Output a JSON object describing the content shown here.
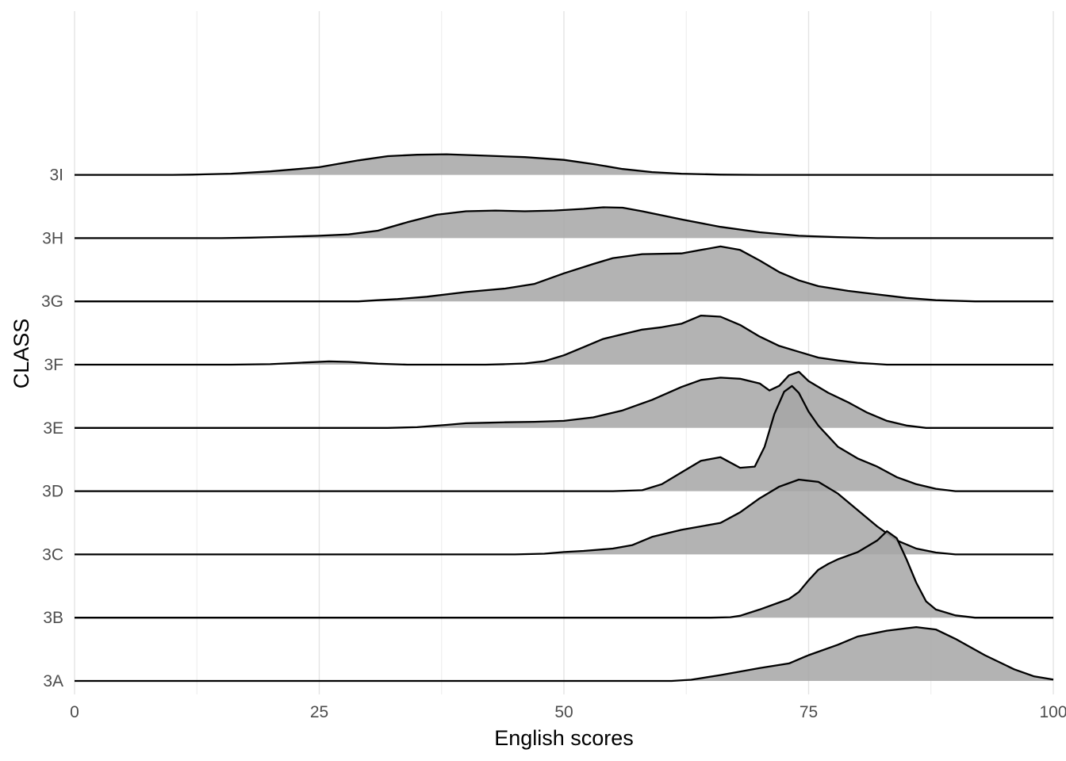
{
  "chart_data": {
    "type": "ridgeline",
    "title": "",
    "xlabel": "English scores",
    "ylabel": "CLASS",
    "xlim": [
      0,
      100
    ],
    "x_ticks": [
      0,
      25,
      50,
      75,
      100
    ],
    "x_tick_labels": [
      "0",
      "25",
      "50",
      "75",
      "100"
    ],
    "grid": "vertical",
    "legend": "none",
    "fill_color": "#a6a6a6",
    "fill_opacity": 0.85,
    "line_color": "#000000",
    "categories": [
      "3A",
      "3B",
      "3C",
      "3D",
      "3E",
      "3F",
      "3G",
      "3H",
      "3I"
    ],
    "series": [
      {
        "name": "3A",
        "density_points": [
          [
            0,
            0
          ],
          [
            61,
            0
          ],
          [
            63,
            0.05
          ],
          [
            66,
            0.25
          ],
          [
            70,
            0.55
          ],
          [
            73,
            0.75
          ],
          [
            75,
            1.1
          ],
          [
            78,
            1.55
          ],
          [
            80,
            1.9
          ],
          [
            83,
            2.15
          ],
          [
            86,
            2.3
          ],
          [
            88,
            2.2
          ],
          [
            90,
            1.8
          ],
          [
            93,
            1.1
          ],
          [
            96,
            0.5
          ],
          [
            98,
            0.2
          ],
          [
            100,
            0.06
          ]
        ]
      },
      {
        "name": "3B",
        "density_points": [
          [
            0,
            0
          ],
          [
            65,
            0
          ],
          [
            67,
            0.02
          ],
          [
            68,
            0.08
          ],
          [
            70,
            0.35
          ],
          [
            72,
            0.65
          ],
          [
            73,
            0.8
          ],
          [
            74,
            1.1
          ],
          [
            75,
            1.6
          ],
          [
            76,
            2.05
          ],
          [
            77,
            2.3
          ],
          [
            78,
            2.5
          ],
          [
            80,
            2.8
          ],
          [
            82,
            3.3
          ],
          [
            83,
            3.7
          ],
          [
            84,
            3.4
          ],
          [
            85,
            2.5
          ],
          [
            86,
            1.5
          ],
          [
            87,
            0.7
          ],
          [
            88,
            0.35
          ],
          [
            90,
            0.1
          ],
          [
            92,
            0
          ],
          [
            100,
            0
          ]
        ]
      },
      {
        "name": "3C",
        "density_points": [
          [
            0,
            0
          ],
          [
            45,
            0
          ],
          [
            48,
            0.03
          ],
          [
            50,
            0.1
          ],
          [
            52,
            0.15
          ],
          [
            55,
            0.25
          ],
          [
            57,
            0.4
          ],
          [
            59,
            0.75
          ],
          [
            62,
            1.05
          ],
          [
            64,
            1.2
          ],
          [
            66,
            1.35
          ],
          [
            68,
            1.8
          ],
          [
            70,
            2.4
          ],
          [
            72,
            2.9
          ],
          [
            74,
            3.2
          ],
          [
            76,
            3.1
          ],
          [
            78,
            2.6
          ],
          [
            80,
            1.9
          ],
          [
            82,
            1.2
          ],
          [
            84,
            0.6
          ],
          [
            86,
            0.25
          ],
          [
            88,
            0.08
          ],
          [
            90,
            0
          ],
          [
            100,
            0
          ]
        ]
      },
      {
        "name": "3D",
        "density_points": [
          [
            0,
            0
          ],
          [
            55,
            0
          ],
          [
            58,
            0.04
          ],
          [
            60,
            0.3
          ],
          [
            62,
            0.8
          ],
          [
            64,
            1.3
          ],
          [
            66,
            1.45
          ],
          [
            68,
            1.0
          ],
          [
            69.5,
            1.05
          ],
          [
            70.5,
            1.9
          ],
          [
            71.5,
            3.3
          ],
          [
            72.5,
            4.25
          ],
          [
            73.3,
            4.5
          ],
          [
            74,
            4.2
          ],
          [
            75,
            3.4
          ],
          [
            76,
            2.8
          ],
          [
            77,
            2.35
          ],
          [
            78,
            1.9
          ],
          [
            80,
            1.4
          ],
          [
            82,
            1.05
          ],
          [
            84,
            0.6
          ],
          [
            86,
            0.3
          ],
          [
            88,
            0.1
          ],
          [
            90,
            0
          ],
          [
            100,
            0
          ]
        ]
      },
      {
        "name": "3E",
        "density_points": [
          [
            0,
            0
          ],
          [
            32,
            0
          ],
          [
            35,
            0.03
          ],
          [
            38,
            0.13
          ],
          [
            40,
            0.2
          ],
          [
            42,
            0.22
          ],
          [
            44,
            0.24
          ],
          [
            47,
            0.26
          ],
          [
            50,
            0.3
          ],
          [
            53,
            0.45
          ],
          [
            56,
            0.75
          ],
          [
            59,
            1.2
          ],
          [
            62,
            1.75
          ],
          [
            64,
            2.05
          ],
          [
            66,
            2.15
          ],
          [
            68,
            2.1
          ],
          [
            70,
            1.9
          ],
          [
            71,
            1.6
          ],
          [
            72,
            1.8
          ],
          [
            73,
            2.25
          ],
          [
            74,
            2.4
          ],
          [
            75,
            2.0
          ],
          [
            77,
            1.5
          ],
          [
            79,
            1.1
          ],
          [
            81,
            0.65
          ],
          [
            83,
            0.3
          ],
          [
            85,
            0.1
          ],
          [
            87,
            0
          ],
          [
            100,
            0
          ]
        ]
      },
      {
        "name": "3F",
        "density_points": [
          [
            0,
            0
          ],
          [
            16,
            0
          ],
          [
            20,
            0.02
          ],
          [
            23,
            0.08
          ],
          [
            26,
            0.14
          ],
          [
            28,
            0.12
          ],
          [
            31,
            0.04
          ],
          [
            34,
            0
          ],
          [
            42,
            0
          ],
          [
            44,
            0.02
          ],
          [
            46,
            0.05
          ],
          [
            48,
            0.15
          ],
          [
            50,
            0.4
          ],
          [
            52,
            0.75
          ],
          [
            54,
            1.1
          ],
          [
            56,
            1.3
          ],
          [
            58,
            1.5
          ],
          [
            60,
            1.6
          ],
          [
            62,
            1.75
          ],
          [
            64,
            2.1
          ],
          [
            66,
            2.05
          ],
          [
            68,
            1.7
          ],
          [
            70,
            1.2
          ],
          [
            72,
            0.8
          ],
          [
            74,
            0.55
          ],
          [
            76,
            0.3
          ],
          [
            78,
            0.18
          ],
          [
            80,
            0.08
          ],
          [
            83,
            0
          ],
          [
            100,
            0
          ]
        ]
      },
      {
        "name": "3G",
        "density_points": [
          [
            0,
            0
          ],
          [
            29,
            0
          ],
          [
            31,
            0.05
          ],
          [
            33,
            0.1
          ],
          [
            36,
            0.2
          ],
          [
            40,
            0.4
          ],
          [
            44,
            0.55
          ],
          [
            47,
            0.75
          ],
          [
            50,
            1.2
          ],
          [
            53,
            1.6
          ],
          [
            55,
            1.85
          ],
          [
            58,
            2.02
          ],
          [
            62,
            2.05
          ],
          [
            64,
            2.2
          ],
          [
            66,
            2.35
          ],
          [
            68,
            2.2
          ],
          [
            70,
            1.75
          ],
          [
            72,
            1.25
          ],
          [
            74,
            0.9
          ],
          [
            76,
            0.65
          ],
          [
            79,
            0.45
          ],
          [
            82,
            0.3
          ],
          [
            85,
            0.15
          ],
          [
            88,
            0.05
          ],
          [
            92,
            0
          ],
          [
            100,
            0
          ]
        ]
      },
      {
        "name": "3H",
        "density_points": [
          [
            0,
            0
          ],
          [
            15,
            0
          ],
          [
            18,
            0.02
          ],
          [
            21,
            0.05
          ],
          [
            25,
            0.1
          ],
          [
            28,
            0.16
          ],
          [
            31,
            0.32
          ],
          [
            34,
            0.68
          ],
          [
            37,
            1.0
          ],
          [
            40,
            1.15
          ],
          [
            43,
            1.18
          ],
          [
            46,
            1.15
          ],
          [
            49,
            1.18
          ],
          [
            52,
            1.25
          ],
          [
            54,
            1.32
          ],
          [
            56,
            1.3
          ],
          [
            58,
            1.15
          ],
          [
            62,
            0.8
          ],
          [
            66,
            0.48
          ],
          [
            70,
            0.25
          ],
          [
            74,
            0.1
          ],
          [
            78,
            0.04
          ],
          [
            82,
            0
          ],
          [
            100,
            0
          ]
        ]
      },
      {
        "name": "3I",
        "density_points": [
          [
            0,
            0
          ],
          [
            10,
            0
          ],
          [
            12,
            0.01
          ],
          [
            16,
            0.05
          ],
          [
            20,
            0.15
          ],
          [
            25,
            0.33
          ],
          [
            29,
            0.62
          ],
          [
            32,
            0.8
          ],
          [
            35,
            0.86
          ],
          [
            38,
            0.88
          ],
          [
            42,
            0.82
          ],
          [
            46,
            0.76
          ],
          [
            50,
            0.64
          ],
          [
            53,
            0.46
          ],
          [
            56,
            0.25
          ],
          [
            59,
            0.12
          ],
          [
            62,
            0.05
          ],
          [
            66,
            0.01
          ],
          [
            70,
            0
          ],
          [
            100,
            0
          ]
        ]
      }
    ]
  }
}
